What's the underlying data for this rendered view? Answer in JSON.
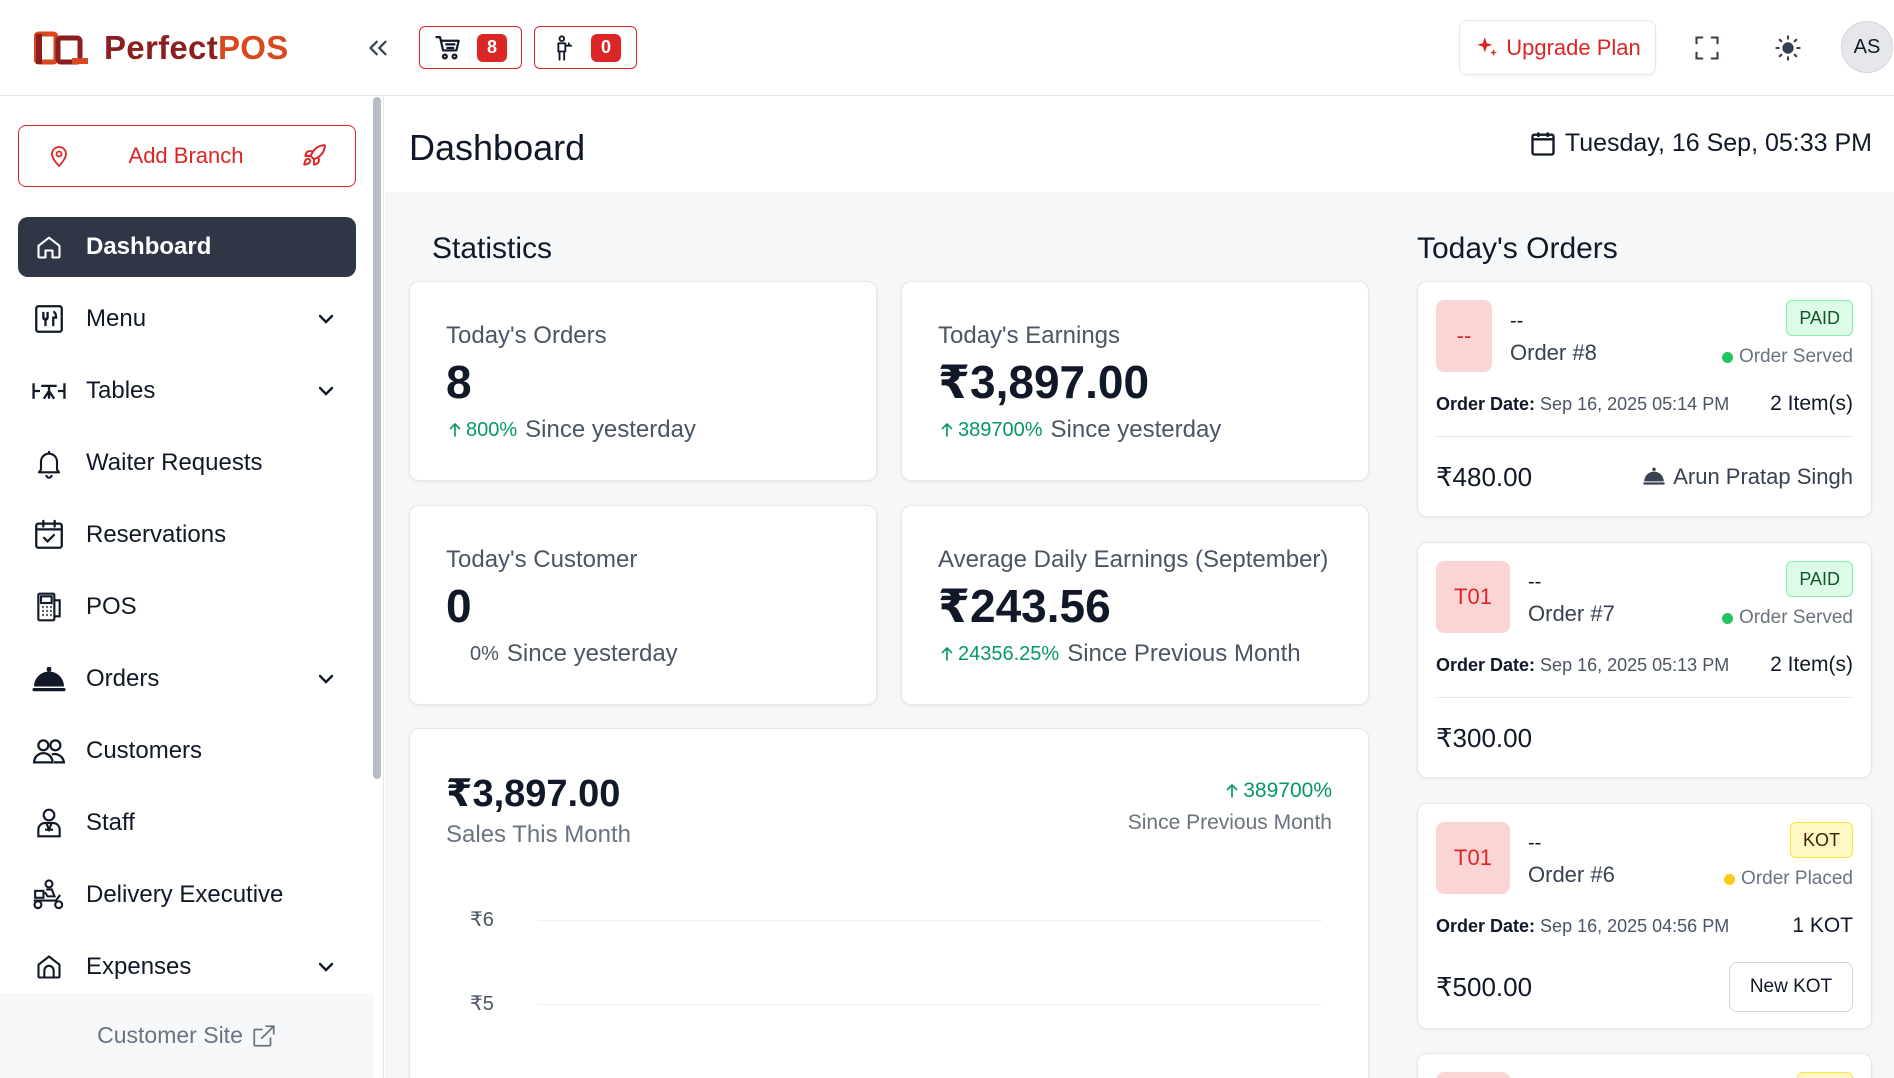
{
  "app": {
    "logo_text_a": "Perfect",
    "logo_text_b": "POS",
    "brand_color": "#dc2626"
  },
  "header": {
    "cart_count": "8",
    "waiter_count": "0",
    "upgrade_label": "Upgrade Plan",
    "avatar_initials": "AS",
    "icons": [
      "chevrons-left-icon",
      "cart-icon",
      "waiter-icon",
      "sparkle-icon",
      "fullscreen-icon",
      "sun-icon"
    ]
  },
  "sidebar": {
    "add_branch_label": "Add Branch",
    "items": [
      {
        "label": "Dashboard",
        "icon": "home-icon",
        "active": true,
        "has_children": false
      },
      {
        "label": "Menu",
        "icon": "menu-book-icon",
        "has_children": true
      },
      {
        "label": "Tables",
        "icon": "table-icon",
        "has_children": true
      },
      {
        "label": "Waiter Requests",
        "icon": "bell-icon",
        "has_children": false
      },
      {
        "label": "Reservations",
        "icon": "calendar-check-icon",
        "has_children": false
      },
      {
        "label": "POS",
        "icon": "pos-terminal-icon",
        "has_children": false
      },
      {
        "label": "Orders",
        "icon": "cloche-icon",
        "has_children": true
      },
      {
        "label": "Customers",
        "icon": "users-icon",
        "has_children": false
      },
      {
        "label": "Staff",
        "icon": "staff-icon",
        "has_children": false
      },
      {
        "label": "Delivery Executive",
        "icon": "scooter-icon",
        "has_children": false
      },
      {
        "label": "Expenses",
        "icon": "wallet-icon",
        "has_children": true
      }
    ],
    "footer_label": "Customer Site"
  },
  "page": {
    "title": "Dashboard",
    "datetime": "Tuesday, 16 Sep, 05:33 PM"
  },
  "statistics": {
    "title": "Statistics",
    "cards": [
      {
        "label": "Today's Orders",
        "value": "8",
        "pct": "800%",
        "since": "Since yesterday",
        "trend": "up"
      },
      {
        "label": "Today's Earnings",
        "value": "₹3,897.00",
        "pct": "389700%",
        "since": "Since yesterday",
        "trend": "up"
      },
      {
        "label": "Today's Customer",
        "value": "0",
        "pct": "0%",
        "since": "Since yesterday",
        "trend": "flat"
      },
      {
        "label": "Average Daily Earnings (September)",
        "value": "₹243.56",
        "pct": "24356.25%",
        "since": "Since Previous Month",
        "trend": "up"
      }
    ]
  },
  "sales": {
    "value": "₹3,897.00",
    "subtitle": "Sales This Month",
    "pct": "389700%",
    "pct_subtitle": "Since Previous Month",
    "y_ticks": [
      "₹6",
      "₹5"
    ]
  },
  "todays_orders": {
    "title": "Today's Orders",
    "orders": [
      {
        "table": "--",
        "customer": "--",
        "number": "Order #8",
        "payment": "PAID",
        "status": "Order Served",
        "status_color": "#22c55e",
        "date_label": "Order Date:",
        "date": "Sep 16, 2025 05:14 PM",
        "items": "2 Item(s)",
        "total": "₹480.00",
        "waiter": "Arun Pratap Singh"
      },
      {
        "table": "T01",
        "customer": "--",
        "number": "Order #7",
        "payment": "PAID",
        "status": "Order Served",
        "status_color": "#22c55e",
        "date_label": "Order Date:",
        "date": "Sep 16, 2025 05:13 PM",
        "items": "2 Item(s)",
        "total": "₹300.00"
      },
      {
        "table": "T01",
        "customer": "--",
        "number": "Order #6",
        "payment": "KOT",
        "status": "Order Placed",
        "status_color": "#facc15",
        "date_label": "Order Date:",
        "date": "Sep 16, 2025 04:56 PM",
        "items": "1 KOT",
        "total": "₹500.00",
        "action": "New KOT"
      }
    ]
  }
}
